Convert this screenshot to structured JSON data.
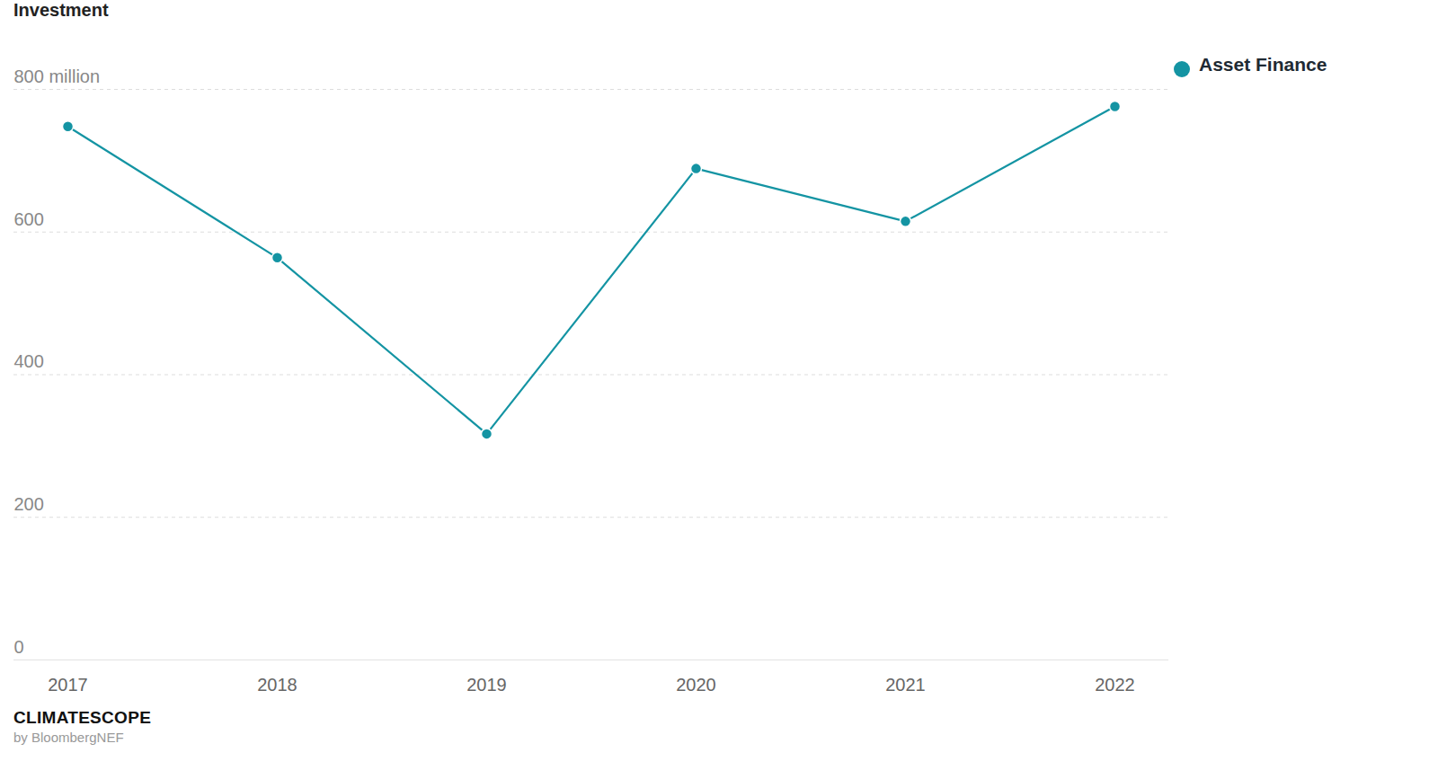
{
  "chart_data": {
    "type": "line",
    "title": "Investment",
    "categories": [
      "2017",
      "2018",
      "2019",
      "2020",
      "2021",
      "2022"
    ],
    "series": [
      {
        "name": "Asset Finance",
        "color": "#1494a3",
        "values": [
          748,
          564,
          317,
          689,
          615,
          776
        ],
        "marker": "circle"
      }
    ],
    "ylim": [
      0,
      800
    ],
    "yticks": [
      0,
      200,
      400,
      600,
      {
        "value": 800,
        "label": "800 million"
      }
    ],
    "grid": true,
    "legend": "top-right",
    "caption": [
      "CLIMATESCOPE",
      "by BloombergNEF"
    ]
  }
}
